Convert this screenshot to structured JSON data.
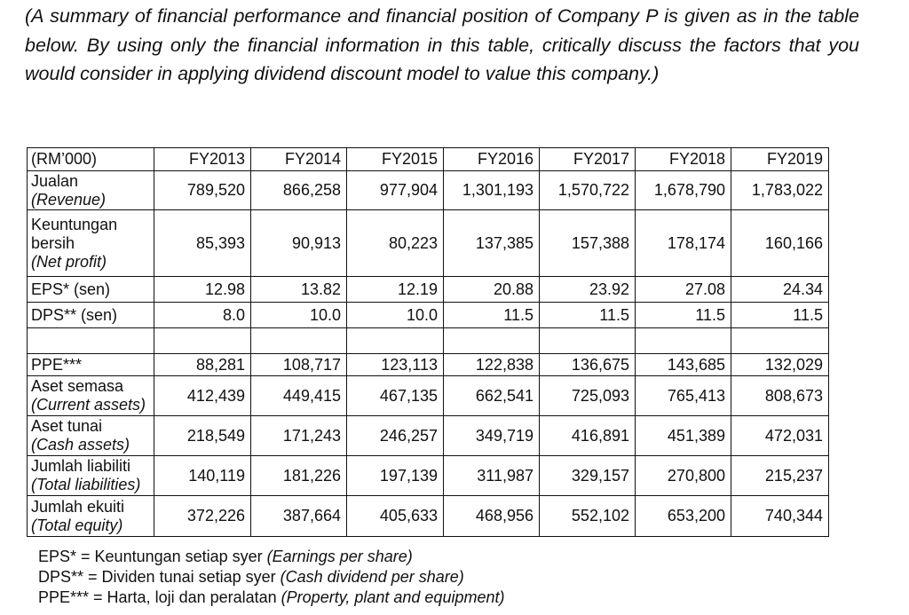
{
  "intro": "(A summary of financial performance and financial position of Company P is given as in the table below. By using only the financial information in this table, critically discuss the factors that you would consider in applying dividend discount model to value this company.)",
  "table": {
    "corner": "(RM’000)",
    "years": [
      "FY2013",
      "FY2014",
      "FY2015",
      "FY2016",
      "FY2017",
      "FY2018",
      "FY2019"
    ],
    "rows": [
      {
        "label_main": "Jualan",
        "label_en": "(Revenue)",
        "values": [
          "789,520",
          "866,258",
          "977,904",
          "1,301,193",
          "1,570,722",
          "1,678,790",
          "1,783,022"
        ]
      },
      {
        "label_main": "Keuntungan bersih",
        "label_en": "(Net profit)",
        "values": [
          "85,393",
          "90,913",
          "80,223",
          "137,385",
          "157,388",
          "178,174",
          "160,166"
        ]
      },
      {
        "label_main": "EPS* (sen)",
        "values": [
          "12.98",
          "13.82",
          "12.19",
          "20.88",
          "23.92",
          "27.08",
          "24.34"
        ]
      },
      {
        "label_main": "DPS** (sen)",
        "values": [
          "8.0",
          "10.0",
          "10.0",
          "11.5",
          "11.5",
          "11.5",
          "11.5"
        ]
      },
      {
        "label_main": "PPE***",
        "values": [
          "88,281",
          "108,717",
          "123,113",
          "122,838",
          "136,675",
          "143,685",
          "132,029"
        ]
      },
      {
        "label_main": "Aset semasa",
        "label_en": "(Current assets)",
        "values": [
          "412,439",
          "449,415",
          "467,135",
          "662,541",
          "725,093",
          "765,413",
          "808,673"
        ]
      },
      {
        "label_main": "Aset tunai",
        "label_en": "(Cash assets)",
        "values": [
          "218,549",
          "171,243",
          "246,257",
          "349,719",
          "416,891",
          "451,389",
          "472,031"
        ]
      },
      {
        "label_main": "Jumlah liabiliti",
        "label_en": "(Total liabilities)",
        "values": [
          "140,119",
          "181,226",
          "197,139",
          "311,987",
          "329,157",
          "270,800",
          "215,237"
        ]
      },
      {
        "label_main": "Jumlah ekuiti",
        "label_en": "(Total equity)",
        "values": [
          "372,226",
          "387,664",
          "405,633",
          "468,956",
          "552,102",
          "653,200",
          "740,344"
        ]
      }
    ]
  },
  "footnotes": [
    {
      "abbr": "EPS* = Keuntungan setiap syer ",
      "en": "(Earnings per share)"
    },
    {
      "abbr": "DPS** = Dividen tunai setiap syer ",
      "en": "(Cash dividend per share)"
    },
    {
      "abbr": "PPE*** = Harta, loji dan peralatan ",
      "en": "(Property, plant and equipment)"
    }
  ]
}
